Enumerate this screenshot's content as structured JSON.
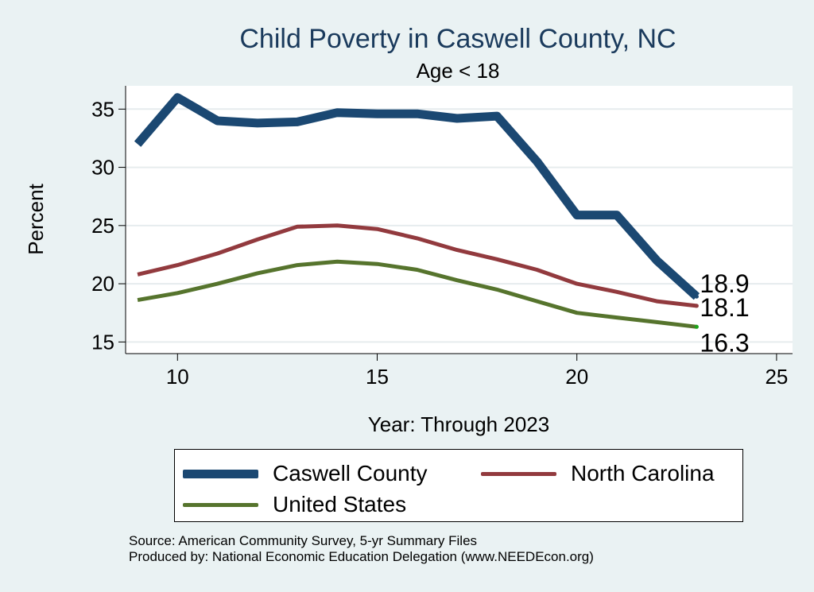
{
  "chart_data": {
    "type": "line",
    "title": "Child Poverty in Caswell County, NC",
    "subtitle": "Age < 18",
    "xlabel": "Year: Through 2023",
    "ylabel": "Percent",
    "xlim": [
      8.7,
      25.4
    ],
    "ylim": [
      14,
      37
    ],
    "x_ticks": [
      10,
      15,
      20,
      25
    ],
    "y_ticks": [
      15,
      20,
      25,
      30,
      35
    ],
    "grid": true,
    "legend_position": "bottom",
    "series": [
      {
        "name": "Caswell County",
        "color": "#1b4872",
        "x": [
          9,
          10,
          11,
          12,
          13,
          14,
          15,
          16,
          17,
          18,
          19,
          20,
          21,
          22,
          23
        ],
        "values": [
          32.0,
          36.0,
          34.0,
          33.8,
          33.9,
          34.7,
          34.6,
          34.6,
          34.2,
          34.4,
          30.5,
          25.9,
          25.9,
          22.0,
          18.9
        ],
        "end_label": "18.9"
      },
      {
        "name": "North Carolina",
        "color": "#923a3e",
        "x": [
          9,
          10,
          11,
          12,
          13,
          14,
          15,
          16,
          17,
          18,
          19,
          20,
          21,
          22,
          23
        ],
        "values": [
          20.8,
          21.6,
          22.6,
          23.8,
          24.9,
          25.0,
          24.7,
          23.9,
          22.9,
          22.1,
          21.2,
          20.0,
          19.3,
          18.5,
          18.1
        ],
        "end_label": "18.1"
      },
      {
        "name": "United States",
        "color": "#56742d",
        "x": [
          9,
          10,
          11,
          12,
          13,
          14,
          15,
          16,
          17,
          18,
          19,
          20,
          21,
          22,
          23
        ],
        "values": [
          18.6,
          19.2,
          20.0,
          20.9,
          21.6,
          21.9,
          21.7,
          21.2,
          20.3,
          19.5,
          18.5,
          17.5,
          17.1,
          16.7,
          16.3
        ],
        "end_label": "16.3"
      }
    ]
  },
  "notes": {
    "source": "Source: American Community Survey, 5-yr Summary Files",
    "produced_by": "Produced by: National Economic Education Delegation (www.NEEDEcon.org)"
  }
}
